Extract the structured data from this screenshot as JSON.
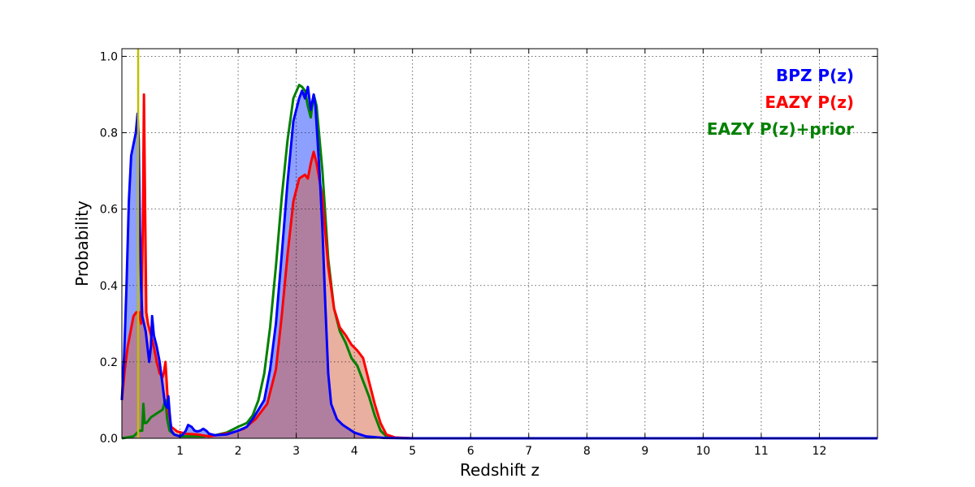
{
  "chart_data": {
    "type": "area",
    "title": "",
    "xlabel": "Redshift z",
    "ylabel": "Probability",
    "xlim": [
      0,
      13
    ],
    "ylim": [
      0,
      1.02
    ],
    "grid": true,
    "legend_position": "top-right",
    "x_ticks": [
      1,
      2,
      3,
      4,
      5,
      6,
      7,
      8,
      9,
      10,
      11,
      12
    ],
    "y_ticks": [
      0.0,
      0.2,
      0.4,
      0.6,
      0.8,
      1.0
    ],
    "x_tick_labels": [
      "1",
      "2",
      "3",
      "4",
      "5",
      "6",
      "7",
      "8",
      "9",
      "10",
      "11",
      "12"
    ],
    "y_tick_labels": [
      "0.0",
      "0.2",
      "0.4",
      "0.6",
      "0.8",
      "1.0"
    ],
    "vertical_line": {
      "x": 0.28,
      "color": "#bfbf00"
    },
    "series": [
      {
        "name": "BPZ P(z)",
        "color": "#0000ff",
        "fill": "#3050ff",
        "points": [
          [
            0,
            0.1
          ],
          [
            0.04,
            0.22
          ],
          [
            0.08,
            0.4
          ],
          [
            0.12,
            0.62
          ],
          [
            0.16,
            0.74
          ],
          [
            0.2,
            0.77
          ],
          [
            0.24,
            0.8
          ],
          [
            0.27,
            0.85
          ],
          [
            0.29,
            0.78
          ],
          [
            0.31,
            0.55
          ],
          [
            0.33,
            0.4
          ],
          [
            0.35,
            0.32
          ],
          [
            0.38,
            0.3
          ],
          [
            0.41,
            0.28
          ],
          [
            0.44,
            0.24
          ],
          [
            0.47,
            0.2
          ],
          [
            0.5,
            0.24
          ],
          [
            0.52,
            0.32
          ],
          [
            0.55,
            0.27
          ],
          [
            0.6,
            0.24
          ],
          [
            0.65,
            0.2
          ],
          [
            0.7,
            0.14
          ],
          [
            0.74,
            0.09
          ],
          [
            0.78,
            0.08
          ],
          [
            0.8,
            0.11
          ],
          [
            0.82,
            0.07
          ],
          [
            0.85,
            0.02
          ],
          [
            0.9,
            0.01
          ],
          [
            1.0,
            0.005
          ],
          [
            1.05,
            0.01
          ],
          [
            1.1,
            0.02
          ],
          [
            1.14,
            0.035
          ],
          [
            1.2,
            0.03
          ],
          [
            1.25,
            0.02
          ],
          [
            1.3,
            0.018
          ],
          [
            1.35,
            0.02
          ],
          [
            1.4,
            0.025
          ],
          [
            1.45,
            0.02
          ],
          [
            1.5,
            0.012
          ],
          [
            1.6,
            0.008
          ],
          [
            1.8,
            0.01
          ],
          [
            2.0,
            0.02
          ],
          [
            2.15,
            0.03
          ],
          [
            2.25,
            0.05
          ],
          [
            2.35,
            0.075
          ],
          [
            2.45,
            0.1
          ],
          [
            2.55,
            0.18
          ],
          [
            2.65,
            0.3
          ],
          [
            2.75,
            0.48
          ],
          [
            2.85,
            0.67
          ],
          [
            2.95,
            0.83
          ],
          [
            3.05,
            0.89
          ],
          [
            3.1,
            0.91
          ],
          [
            3.15,
            0.89
          ],
          [
            3.2,
            0.92
          ],
          [
            3.25,
            0.86
          ],
          [
            3.3,
            0.9
          ],
          [
            3.33,
            0.87
          ],
          [
            3.4,
            0.7
          ],
          [
            3.45,
            0.55
          ],
          [
            3.5,
            0.35
          ],
          [
            3.55,
            0.17
          ],
          [
            3.6,
            0.09
          ],
          [
            3.7,
            0.05
          ],
          [
            3.8,
            0.035
          ],
          [
            3.9,
            0.025
          ],
          [
            4.0,
            0.015
          ],
          [
            4.2,
            0.005
          ],
          [
            4.5,
            0.001
          ],
          [
            5,
            0
          ],
          [
            12,
            0
          ],
          [
            13,
            0
          ]
        ]
      },
      {
        "name": "EAZY P(z)",
        "color": "#ff0000",
        "fill": "#d46040",
        "points": [
          [
            0,
            0.1
          ],
          [
            0.05,
            0.18
          ],
          [
            0.1,
            0.24
          ],
          [
            0.15,
            0.28
          ],
          [
            0.2,
            0.32
          ],
          [
            0.25,
            0.33
          ],
          [
            0.3,
            0.33
          ],
          [
            0.33,
            0.3
          ],
          [
            0.36,
            0.55
          ],
          [
            0.38,
            0.9
          ],
          [
            0.4,
            0.6
          ],
          [
            0.42,
            0.33
          ],
          [
            0.45,
            0.3
          ],
          [
            0.5,
            0.27
          ],
          [
            0.55,
            0.24
          ],
          [
            0.6,
            0.2
          ],
          [
            0.65,
            0.17
          ],
          [
            0.7,
            0.16
          ],
          [
            0.72,
            0.17
          ],
          [
            0.75,
            0.2
          ],
          [
            0.77,
            0.15
          ],
          [
            0.8,
            0.07
          ],
          [
            0.85,
            0.03
          ],
          [
            0.95,
            0.018
          ],
          [
            1.1,
            0.012
          ],
          [
            1.3,
            0.01
          ],
          [
            1.5,
            0.005
          ],
          [
            1.7,
            0.01
          ],
          [
            1.9,
            0.015
          ],
          [
            2.1,
            0.025
          ],
          [
            2.3,
            0.05
          ],
          [
            2.5,
            0.09
          ],
          [
            2.65,
            0.18
          ],
          [
            2.75,
            0.32
          ],
          [
            2.85,
            0.48
          ],
          [
            2.95,
            0.62
          ],
          [
            3.05,
            0.68
          ],
          [
            3.15,
            0.69
          ],
          [
            3.2,
            0.68
          ],
          [
            3.25,
            0.72
          ],
          [
            3.3,
            0.75
          ],
          [
            3.35,
            0.72
          ],
          [
            3.45,
            0.63
          ],
          [
            3.55,
            0.45
          ],
          [
            3.65,
            0.34
          ],
          [
            3.75,
            0.29
          ],
          [
            3.85,
            0.27
          ],
          [
            3.95,
            0.245
          ],
          [
            4.05,
            0.23
          ],
          [
            4.15,
            0.21
          ],
          [
            4.25,
            0.15
          ],
          [
            4.35,
            0.09
          ],
          [
            4.45,
            0.04
          ],
          [
            4.55,
            0.01
          ],
          [
            4.7,
            0.002
          ],
          [
            5,
            0
          ],
          [
            12,
            0
          ],
          [
            13,
            0
          ]
        ]
      },
      {
        "name": "EAZY P(z)+prior",
        "color": "#008000",
        "fill": "none",
        "points": [
          [
            0,
            0
          ],
          [
            0.2,
            0.005
          ],
          [
            0.3,
            0.02
          ],
          [
            0.35,
            0.02
          ],
          [
            0.37,
            0.09
          ],
          [
            0.39,
            0.04
          ],
          [
            0.42,
            0.04
          ],
          [
            0.45,
            0.045
          ],
          [
            0.5,
            0.055
          ],
          [
            0.55,
            0.06
          ],
          [
            0.6,
            0.065
          ],
          [
            0.65,
            0.07
          ],
          [
            0.7,
            0.075
          ],
          [
            0.73,
            0.09
          ],
          [
            0.75,
            0.1
          ],
          [
            0.78,
            0.05
          ],
          [
            0.82,
            0.02
          ],
          [
            0.9,
            0.01
          ],
          [
            1.0,
            0.005
          ],
          [
            1.2,
            0.005
          ],
          [
            1.4,
            0.005
          ],
          [
            1.6,
            0.008
          ],
          [
            1.8,
            0.015
          ],
          [
            2.0,
            0.03
          ],
          [
            2.15,
            0.04
          ],
          [
            2.25,
            0.06
          ],
          [
            2.35,
            0.1
          ],
          [
            2.45,
            0.17
          ],
          [
            2.55,
            0.29
          ],
          [
            2.65,
            0.45
          ],
          [
            2.75,
            0.63
          ],
          [
            2.85,
            0.78
          ],
          [
            2.95,
            0.89
          ],
          [
            3.05,
            0.925
          ],
          [
            3.1,
            0.92
          ],
          [
            3.15,
            0.91
          ],
          [
            3.2,
            0.87
          ],
          [
            3.25,
            0.84
          ],
          [
            3.3,
            0.9
          ],
          [
            3.35,
            0.87
          ],
          [
            3.45,
            0.7
          ],
          [
            3.55,
            0.47
          ],
          [
            3.65,
            0.34
          ],
          [
            3.75,
            0.28
          ],
          [
            3.85,
            0.25
          ],
          [
            3.95,
            0.21
          ],
          [
            4.05,
            0.19
          ],
          [
            4.15,
            0.15
          ],
          [
            4.25,
            0.11
          ],
          [
            4.35,
            0.06
          ],
          [
            4.45,
            0.02
          ],
          [
            4.55,
            0.005
          ],
          [
            4.7,
            0.001
          ],
          [
            5,
            0
          ],
          [
            13,
            0
          ]
        ]
      }
    ]
  }
}
